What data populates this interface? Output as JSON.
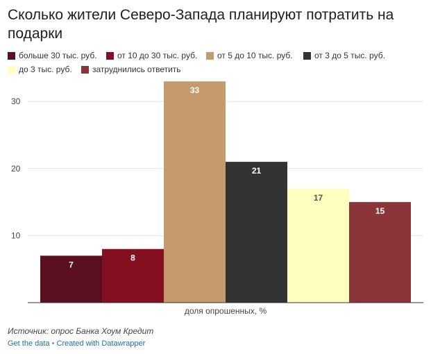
{
  "title": "Сколько жители Северо-Запада планируют потратить на подарки",
  "legend": [
    {
      "label": "больше 30 тыс. руб.",
      "color": "#5a1020"
    },
    {
      "label": "от 10 до 30 тыс. руб.",
      "color": "#830f20"
    },
    {
      "label": "от 5 до 10 тыс. руб.",
      "color": "#c59b6e"
    },
    {
      "label": "от 3 до 5 тыс. руб.",
      "color": "#333333"
    },
    {
      "label": "до 3 тыс. руб.",
      "color": "#ffffbf"
    },
    {
      "label": "затруднились ответить",
      "color": "#8b3439"
    }
  ],
  "chart_data": {
    "type": "bar",
    "categories": [
      "больше 30 тыс. руб.",
      "от 10 до 30 тыс. руб.",
      "от 5 до 10 тыс. руб.",
      "от 3 до 5 тыс. руб.",
      "до 3 тыс. руб.",
      "затруднились ответить"
    ],
    "values": [
      7,
      8,
      33,
      21,
      17,
      15
    ],
    "colors": [
      "#5a1020",
      "#830f20",
      "#c59b6e",
      "#333333",
      "#ffffbf",
      "#8b3439"
    ],
    "label_colors": [
      "#ffffff",
      "#ffffff",
      "#ffffff",
      "#ffffff",
      "#555555",
      "#ffffff"
    ],
    "xlabel": "доля опрошенных, %",
    "yticks": [
      10,
      20,
      30
    ],
    "ylim": [
      0,
      30
    ],
    "grid": true,
    "legend_position": "top-left"
  },
  "source": "Источник: опрос Банка Хоум Кредит",
  "footer": {
    "get_data": "Get the data",
    "separator": "•",
    "created_with": "Created with Datawrapper"
  }
}
